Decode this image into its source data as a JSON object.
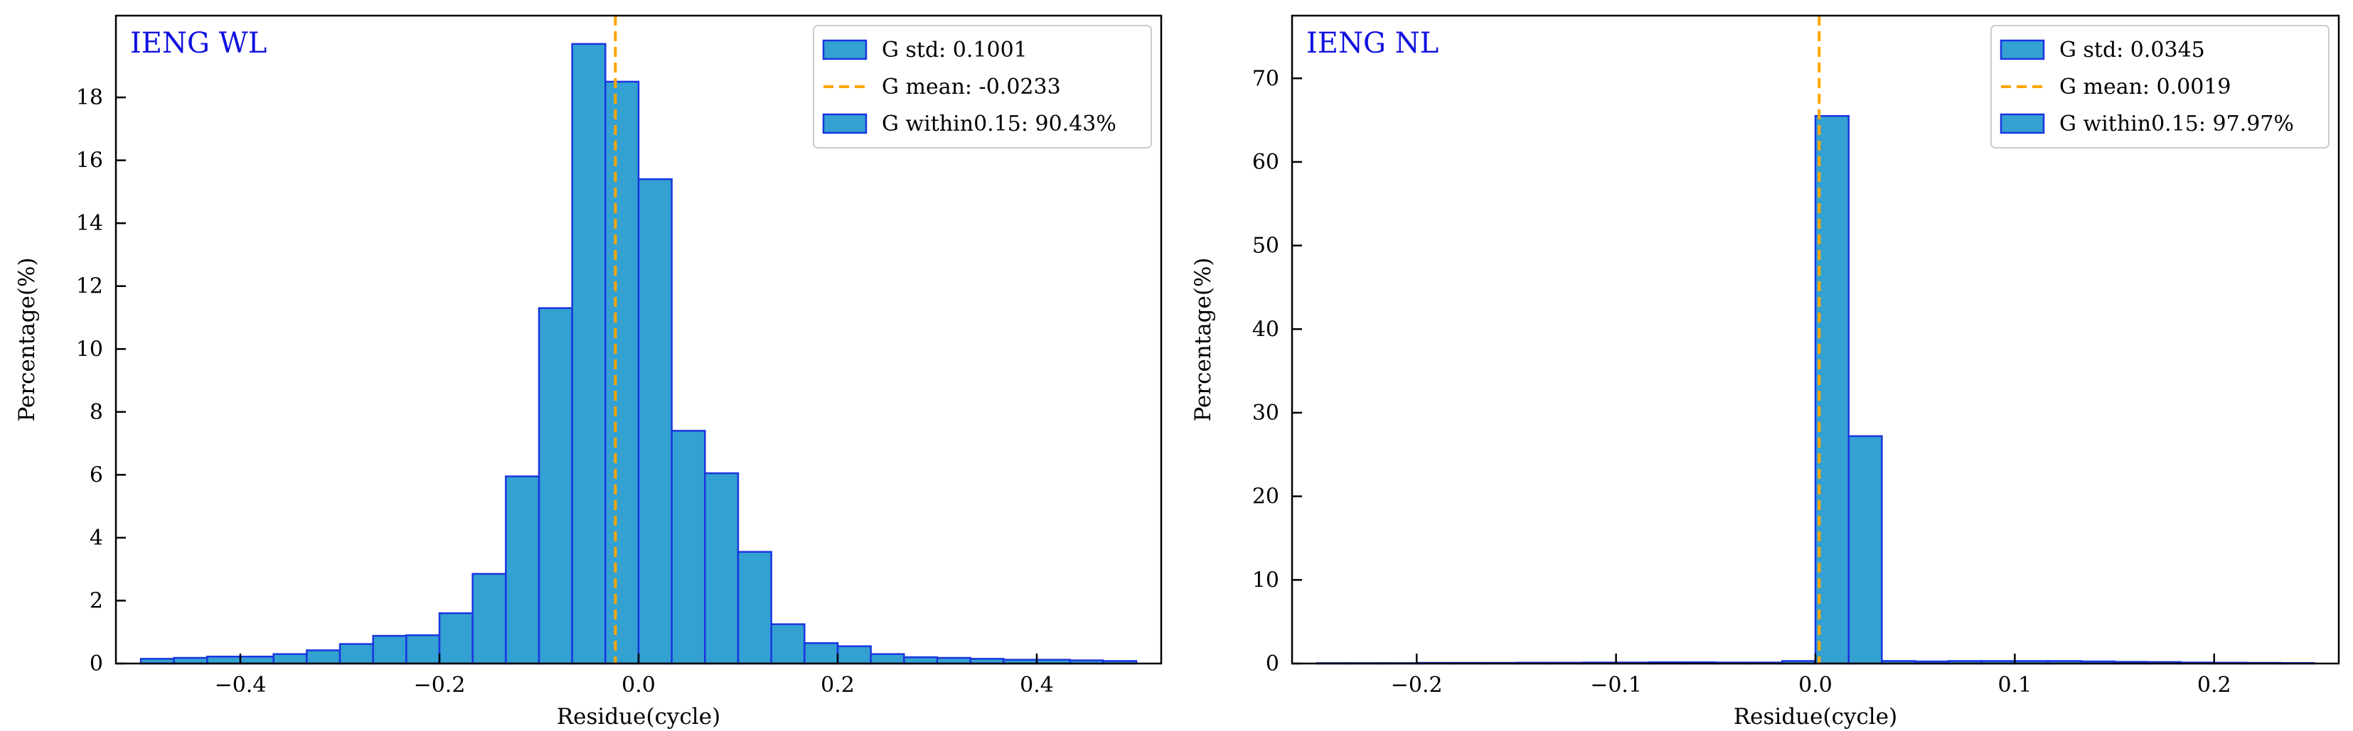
{
  "colors": {
    "bar_fill": "#33A1D1",
    "bar_edge": "#1A35E0",
    "mean_line": "#FFA500",
    "title": "#1010E0",
    "axis": "#000000"
  },
  "chart_data": [
    {
      "type": "bar",
      "title": "IENG WL",
      "xlabel": "Residue(cycle)",
      "ylabel": "Percentage(%)",
      "xlim": [
        -0.525,
        0.525
      ],
      "ylim": [
        0,
        20.6
      ],
      "xticks": [
        -0.4,
        -0.2,
        0.0,
        0.2,
        0.4
      ],
      "xtick_labels": [
        "−0.4",
        "−0.2",
        "0.0",
        "0.2",
        "0.4"
      ],
      "yticks": [
        0,
        2,
        4,
        6,
        8,
        10,
        12,
        14,
        16,
        18
      ],
      "ytick_labels": [
        "0",
        "2",
        "4",
        "6",
        "8",
        "10",
        "12",
        "14",
        "16",
        "18"
      ],
      "bin_start": -0.5,
      "bin_width": 0.0333333,
      "values": [
        0.15,
        0.18,
        0.22,
        0.22,
        0.3,
        0.42,
        0.62,
        0.88,
        0.9,
        1.6,
        2.85,
        5.95,
        11.3,
        19.7,
        18.5,
        15.4,
        7.4,
        6.05,
        3.55,
        1.25,
        0.65,
        0.55,
        0.3,
        0.2,
        0.18,
        0.15,
        0.12,
        0.12,
        0.1,
        0.08
      ],
      "mean_x": -0.0233,
      "legend": {
        "position": "top-right",
        "entries": [
          "G std: 0.1001",
          "G mean: -0.0233",
          "G within0.15: 90.43%"
        ]
      }
    },
    {
      "type": "bar",
      "title": "IENG NL",
      "xlabel": "Residue(cycle)",
      "ylabel": "Percentage(%)",
      "xlim": [
        -0.2625,
        0.2625
      ],
      "ylim": [
        0,
        77.5
      ],
      "xticks": [
        -0.2,
        -0.1,
        0.0,
        0.1,
        0.2
      ],
      "xtick_labels": [
        "−0.2",
        "−0.1",
        "0.0",
        "0.1",
        "0.2"
      ],
      "yticks": [
        0,
        10,
        20,
        30,
        40,
        50,
        60,
        70
      ],
      "ytick_labels": [
        "0",
        "10",
        "20",
        "30",
        "40",
        "50",
        "60",
        "70"
      ],
      "bin_start": -0.25,
      "bin_width": 0.0166667,
      "values": [
        0.05,
        0.05,
        0.05,
        0.08,
        0.08,
        0.08,
        0.1,
        0.1,
        0.12,
        0.12,
        0.15,
        0.15,
        0.12,
        0.12,
        0.3,
        65.5,
        27.2,
        0.3,
        0.25,
        0.3,
        0.3,
        0.3,
        0.3,
        0.25,
        0.2,
        0.18,
        0.12,
        0.1,
        0.08,
        0.06
      ],
      "mean_x": 0.0019,
      "legend": {
        "position": "top-right",
        "entries": [
          "G std: 0.0345",
          "G mean: 0.0019",
          "G within0.15: 97.97%"
        ]
      }
    }
  ]
}
